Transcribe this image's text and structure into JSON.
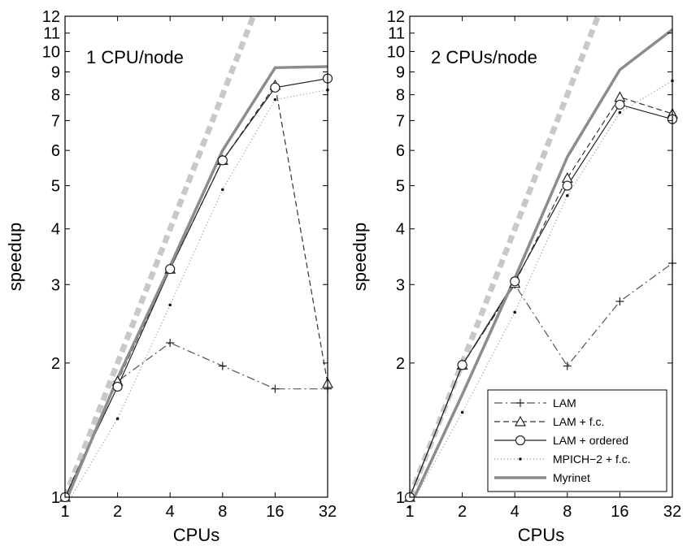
{
  "chart_data": [
    {
      "type": "line",
      "title": "1 CPU/node",
      "xlabel": "CPUs",
      "ylabel": "speedup",
      "x": [
        1,
        2,
        4,
        8,
        16,
        32
      ],
      "x_ticks": [
        "1",
        "2",
        "4",
        "8",
        "16",
        "32"
      ],
      "y_ticks": [
        "1",
        "2",
        "3",
        "4",
        "5",
        "6",
        "7",
        "8",
        "9",
        "10",
        "11",
        "12"
      ],
      "xscale": "log2",
      "yscale": "log",
      "xlim": [
        1,
        32
      ],
      "ylim": [
        1,
        12
      ],
      "grid": false,
      "legend": false,
      "ideal_line": {
        "style": "thick dashed light gray",
        "x": [
          1,
          16
        ],
        "y": [
          1,
          16
        ]
      },
      "series": [
        {
          "name": "LAM",
          "y": [
            1.0,
            1.82,
            2.22,
            1.97,
            1.75,
            1.75
          ]
        },
        {
          "name": "LAM + f.c.",
          "y": [
            1.0,
            1.82,
            3.25,
            5.7,
            8.4,
            1.8
          ]
        },
        {
          "name": "LAM + ordered",
          "y": [
            1.0,
            1.77,
            3.25,
            5.7,
            8.3,
            8.7
          ]
        },
        {
          "name": "MPICH−2 + f.c.",
          "y": [
            0.95,
            1.5,
            2.7,
            4.9,
            7.8,
            8.2
          ]
        },
        {
          "name": "Myrinet",
          "y": [
            0.97,
            1.85,
            3.3,
            6.0,
            9.2,
            9.25
          ]
        }
      ]
    },
    {
      "type": "line",
      "title": "2 CPUs/node",
      "xlabel": "CPUs",
      "ylabel": "speedup",
      "x": [
        1,
        2,
        4,
        8,
        16,
        32
      ],
      "x_ticks": [
        "1",
        "2",
        "4",
        "8",
        "16",
        "32"
      ],
      "y_ticks": [
        "1",
        "2",
        "3",
        "4",
        "5",
        "6",
        "7",
        "8",
        "9",
        "10",
        "11",
        "12"
      ],
      "xscale": "log2",
      "yscale": "log",
      "xlim": [
        1,
        32
      ],
      "ylim": [
        1,
        12
      ],
      "grid": false,
      "legend": true,
      "legend_position": "bottom-right",
      "ideal_line": {
        "style": "thick dashed light gray",
        "x": [
          1,
          16
        ],
        "y": [
          1,
          16
        ]
      },
      "series": [
        {
          "name": "LAM",
          "y": [
            1.0,
            1.98,
            3.0,
            1.97,
            2.75,
            3.35
          ]
        },
        {
          "name": "LAM + f.c.",
          "y": [
            1.0,
            1.98,
            3.02,
            5.2,
            7.9,
            7.25
          ]
        },
        {
          "name": "LAM + ordered",
          "y": [
            1.0,
            1.98,
            3.05,
            5.0,
            7.6,
            7.05
          ]
        },
        {
          "name": "MPICH−2 + f.c.",
          "y": [
            0.95,
            1.55,
            2.6,
            4.75,
            7.3,
            8.6
          ]
        },
        {
          "name": "Myrinet",
          "y": [
            0.95,
            1.7,
            3.1,
            5.8,
            9.1,
            11.2
          ]
        }
      ]
    }
  ],
  "legend_items": [
    {
      "name": "LAM",
      "stroke": "#555555",
      "dash": "10,4,2,4",
      "width": 1.2,
      "marker": "plus"
    },
    {
      "name": "LAM + f.c.",
      "stroke": "#333333",
      "dash": "7,4",
      "width": 1.2,
      "marker": "triangle"
    },
    {
      "name": "LAM + ordered",
      "stroke": "#222222",
      "dash": "",
      "width": 1.2,
      "marker": "circle"
    },
    {
      "name": "MPICH−2 + f.c.",
      "stroke": "#888888",
      "dash": "1,3",
      "width": 1.2,
      "marker": "dot"
    },
    {
      "name": "Myrinet",
      "stroke": "#8c8c8c",
      "dash": "",
      "width": 3.5,
      "marker": "none"
    }
  ],
  "colors": {
    "ideal": "#c8c8c8",
    "myrinet": "#8c8c8c",
    "lines": "#333333"
  }
}
